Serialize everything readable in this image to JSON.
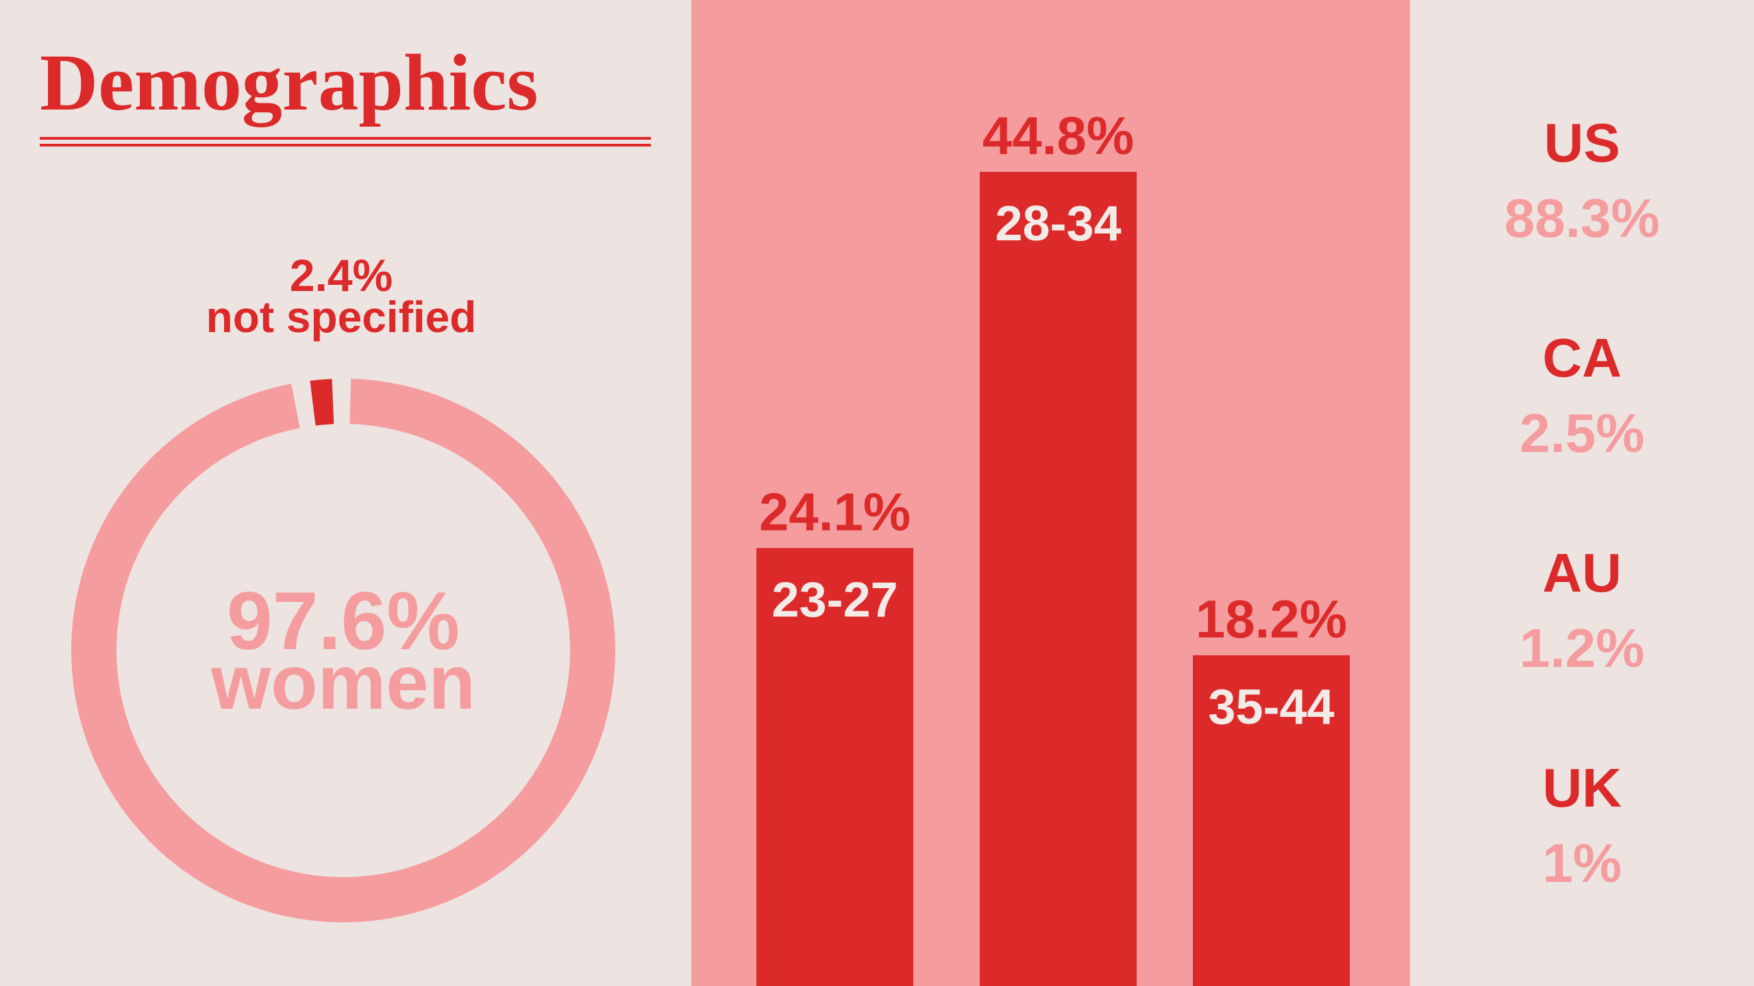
{
  "title": "Demographics",
  "chart_data": [
    {
      "type": "donut",
      "categories": [
        "women",
        "not specified"
      ],
      "values": [
        97.6,
        2.4
      ],
      "value_labels": [
        "97.6%",
        "2.4%"
      ],
      "colors": [
        "#f59c9f",
        "#dc2a2a"
      ]
    },
    {
      "type": "bar",
      "categories": [
        "23-27",
        "28-34",
        "35-44"
      ],
      "values": [
        24.1,
        44.8,
        18.2
      ],
      "value_labels": [
        "24.1%",
        "44.8%",
        "18.2%"
      ],
      "color": "#dc2a2a"
    },
    {
      "type": "list",
      "categories": [
        "US",
        "CA",
        "AU",
        "UK"
      ],
      "values": [
        88.3,
        2.5,
        1.2,
        1
      ],
      "value_labels": [
        "88.3%",
        "2.5%",
        "1.2%",
        "1%"
      ],
      "colors": [
        "#dc2a2a",
        "#f59c9f"
      ]
    }
  ]
}
